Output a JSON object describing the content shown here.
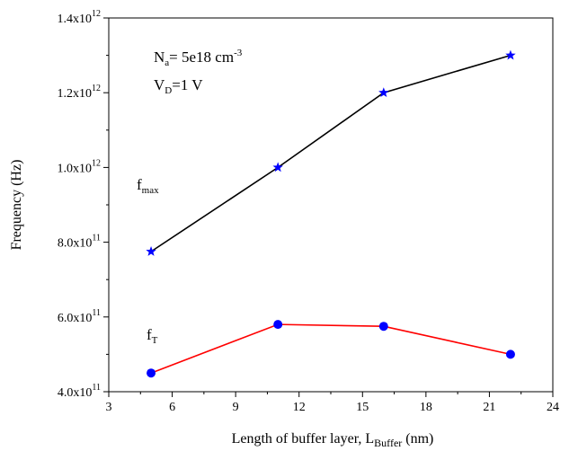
{
  "chart_data": {
    "type": "line",
    "title": "",
    "xlabel": {
      "main": "Length of buffer layer, L",
      "sub": "Buffer",
      "unit": " (nm)"
    },
    "ylabel": "Frequency (Hz)",
    "xlim": [
      3,
      24
    ],
    "ylim": [
      400000000000.0,
      1400000000000.0
    ],
    "x_ticks": [
      3,
      6,
      9,
      12,
      15,
      18,
      21,
      24
    ],
    "y_ticks": [
      {
        "value": 400000000000.0,
        "mantissa": "4.0x10",
        "exp": "11"
      },
      {
        "value": 600000000000.0,
        "mantissa": "6.0x10",
        "exp": "11"
      },
      {
        "value": 800000000000.0,
        "mantissa": "8.0x10",
        "exp": "11"
      },
      {
        "value": 1000000000000.0,
        "mantissa": "1.0x10",
        "exp": "12"
      },
      {
        "value": 1200000000000.0,
        "mantissa": "1.2x10",
        "exp": "12"
      },
      {
        "value": 1400000000000.0,
        "mantissa": "1.4x10",
        "exp": "12"
      }
    ],
    "grid": false,
    "series": [
      {
        "name": "f_max",
        "label_main": "f",
        "label_sub": "max",
        "color": "#000000",
        "marker_color": "#0000ff",
        "marker": "star",
        "x": [
          5,
          11,
          16,
          22
        ],
        "y": [
          775000000000.0,
          1000000000000.0,
          1200000000000.0,
          1300000000000.0
        ]
      },
      {
        "name": "f_T",
        "label_main": "f",
        "label_sub": "T",
        "color": "#ff0000",
        "marker_color": "#0000ff",
        "marker": "circle",
        "x": [
          5,
          11,
          16,
          22
        ],
        "y": [
          450000000000.0,
          580000000000.0,
          575000000000.0,
          500000000000.0
        ]
      }
    ],
    "annotations": {
      "na": {
        "main": "N",
        "sub": "a",
        "rest": "= 5e18 cm",
        "sup": "-3"
      },
      "vd": {
        "main": "V",
        "sub": "D",
        "rest": "=1 V"
      }
    }
  }
}
